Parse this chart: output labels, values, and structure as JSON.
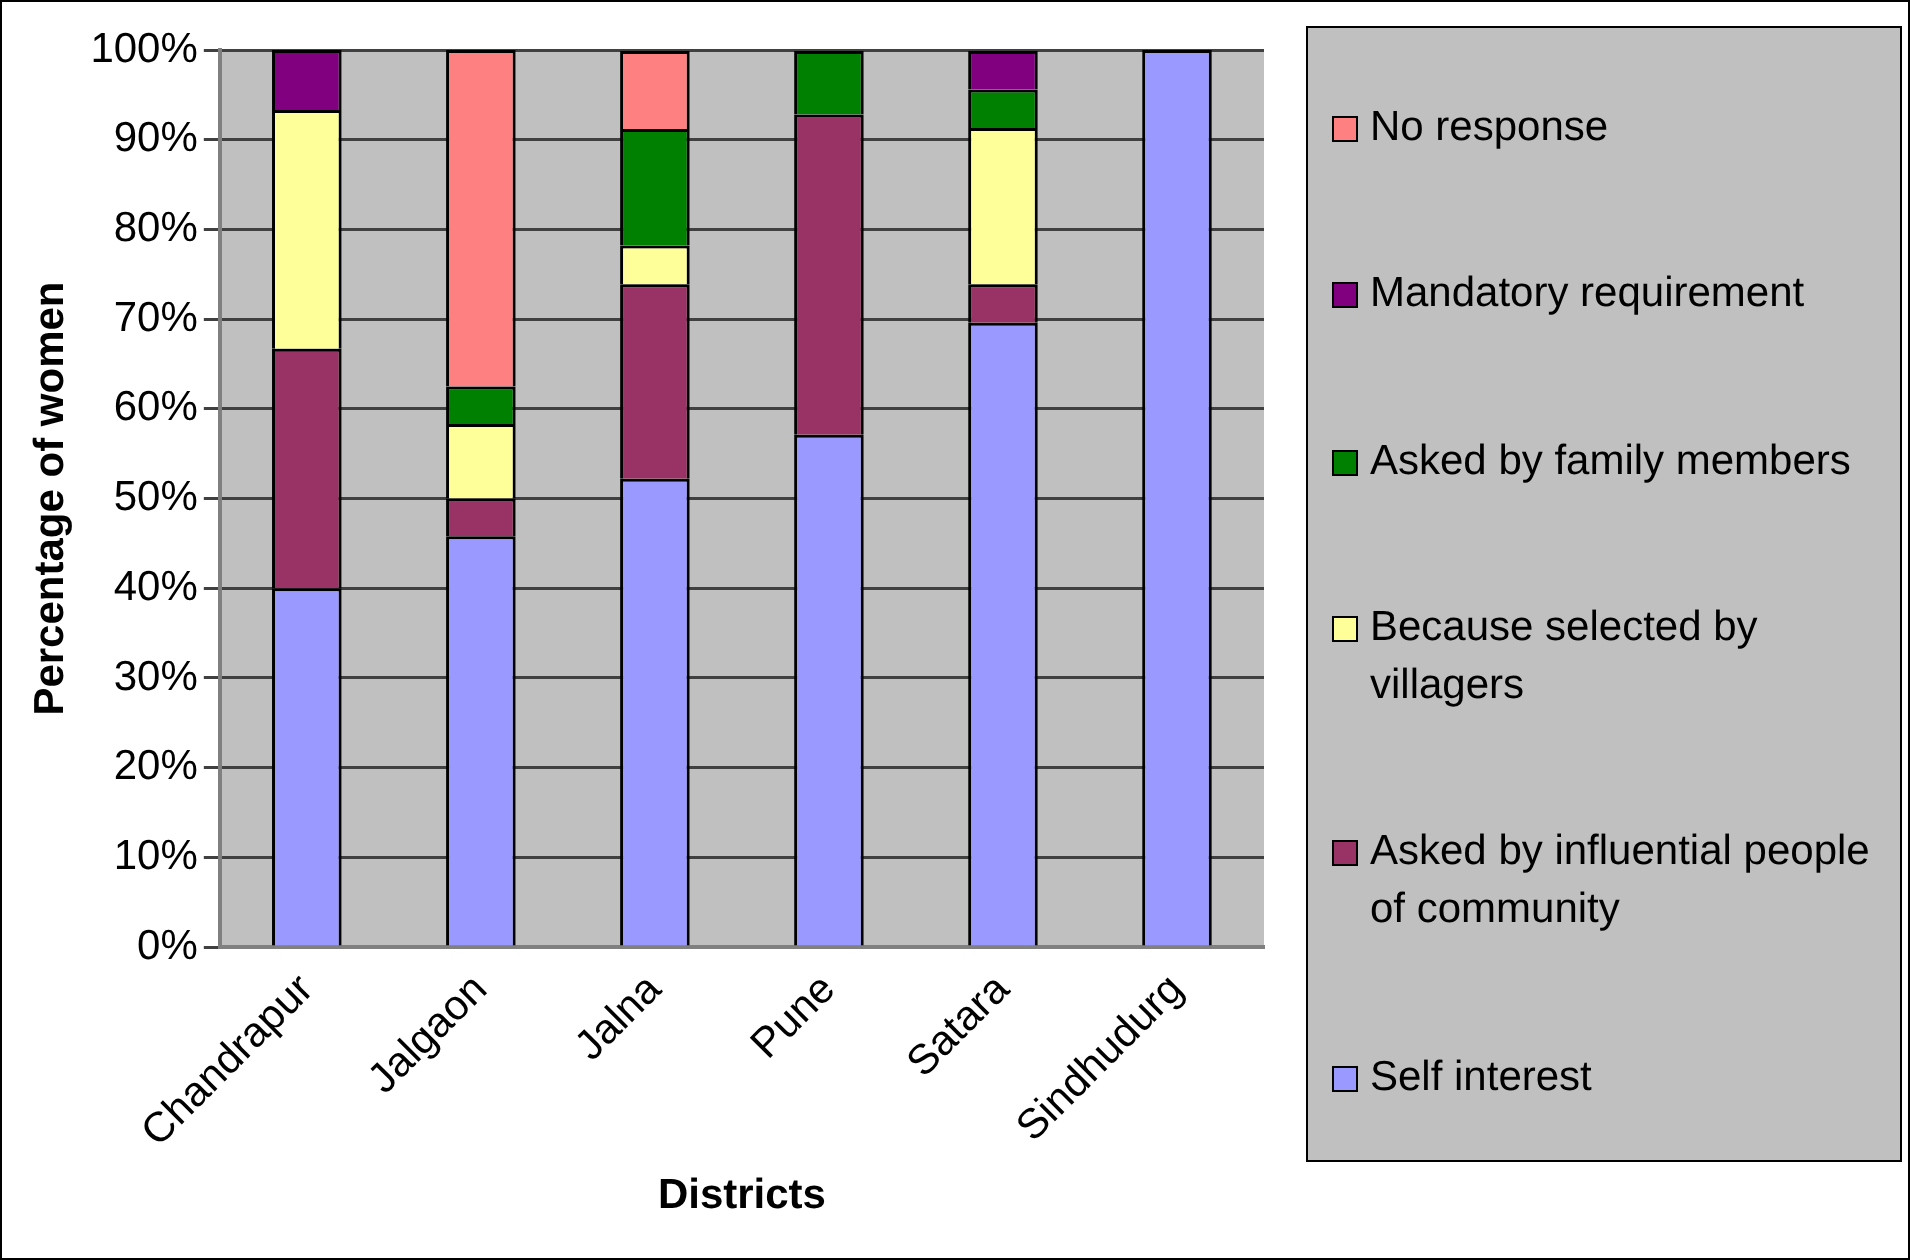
{
  "chart_data": {
    "type": "bar",
    "stacked": true,
    "xlabel": "Districts",
    "ylabel": "Percentage of women",
    "categories": [
      "Chandrapur",
      "Jalgaon",
      "Jalna",
      "Pune",
      "Satara",
      "Sindhudurg"
    ],
    "series": [
      {
        "name": "Self interest",
        "color": "#9999ff",
        "values": [
          40,
          45.8,
          52.2,
          57.1,
          69.6,
          100
        ]
      },
      {
        "name": "Asked by influential people of community",
        "color": "#993366",
        "values": [
          26.7,
          4.2,
          21.7,
          35.7,
          4.3,
          0
        ]
      },
      {
        "name": "Because selected by villagers",
        "color": "#ffff99",
        "values": [
          26.6,
          8.3,
          4.3,
          0,
          17.4,
          0
        ]
      },
      {
        "name": "Asked by family members",
        "color": "#008000",
        "values": [
          0,
          4.2,
          13,
          7.1,
          4.3,
          0
        ]
      },
      {
        "name": "Mandatory requirement",
        "color": "#800080",
        "values": [
          6.7,
          0,
          0,
          0,
          4.3,
          0
        ]
      },
      {
        "name": "No response",
        "color": "#ff8080",
        "values": [
          0,
          37.5,
          8.7,
          0,
          0,
          0
        ]
      }
    ],
    "ylim": [
      0,
      100
    ],
    "yticks": [
      {
        "value": 0,
        "label": "0%"
      },
      {
        "value": 10,
        "label": "10%"
      },
      {
        "value": 20,
        "label": "20%"
      },
      {
        "value": 30,
        "label": "30%"
      },
      {
        "value": 40,
        "label": "40%"
      },
      {
        "value": 50,
        "label": "50%"
      },
      {
        "value": 60,
        "label": "60%"
      },
      {
        "value": 70,
        "label": "70%"
      },
      {
        "value": 80,
        "label": "80%"
      },
      {
        "value": 90,
        "label": "90%"
      },
      {
        "value": 100,
        "label": "100%"
      }
    ],
    "grid": "y",
    "legend": "right"
  }
}
